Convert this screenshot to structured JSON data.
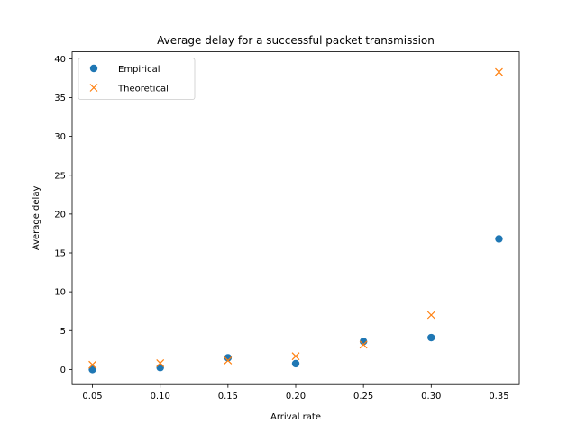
{
  "chart_data": {
    "type": "scatter",
    "title": "Average delay for a successful packet transmission",
    "xlabel": "Arrival rate",
    "ylabel": "Average delay",
    "xlim": [
      0.035,
      0.365
    ],
    "ylim": [
      -1.95,
      40.9
    ],
    "xticks": [
      0.05,
      0.1,
      0.15,
      0.2,
      0.25,
      0.3,
      0.35
    ],
    "xtick_labels": [
      "0.05",
      "0.10",
      "0.15",
      "0.20",
      "0.25",
      "0.30",
      "0.35"
    ],
    "yticks": [
      0,
      5,
      10,
      15,
      20,
      25,
      30,
      35,
      40
    ],
    "ytick_labels": [
      "0",
      "5",
      "10",
      "15",
      "20",
      "25",
      "30",
      "35",
      "40"
    ],
    "grid": false,
    "legend_position": "top-left",
    "series": [
      {
        "name": "Empirical",
        "marker": "circle",
        "color": "#1f77b4",
        "x": [
          0.05,
          0.1,
          0.15,
          0.2,
          0.25,
          0.3,
          0.35
        ],
        "y": [
          0.0,
          0.25,
          1.5,
          0.75,
          3.6,
          4.1,
          16.8
        ]
      },
      {
        "name": "Theoretical",
        "marker": "x",
        "color": "#ff7f0e",
        "x": [
          0.05,
          0.1,
          0.15,
          0.2,
          0.25,
          0.3,
          0.35
        ],
        "y": [
          0.6,
          0.8,
          1.15,
          1.7,
          3.2,
          7.0,
          38.3
        ]
      }
    ]
  }
}
